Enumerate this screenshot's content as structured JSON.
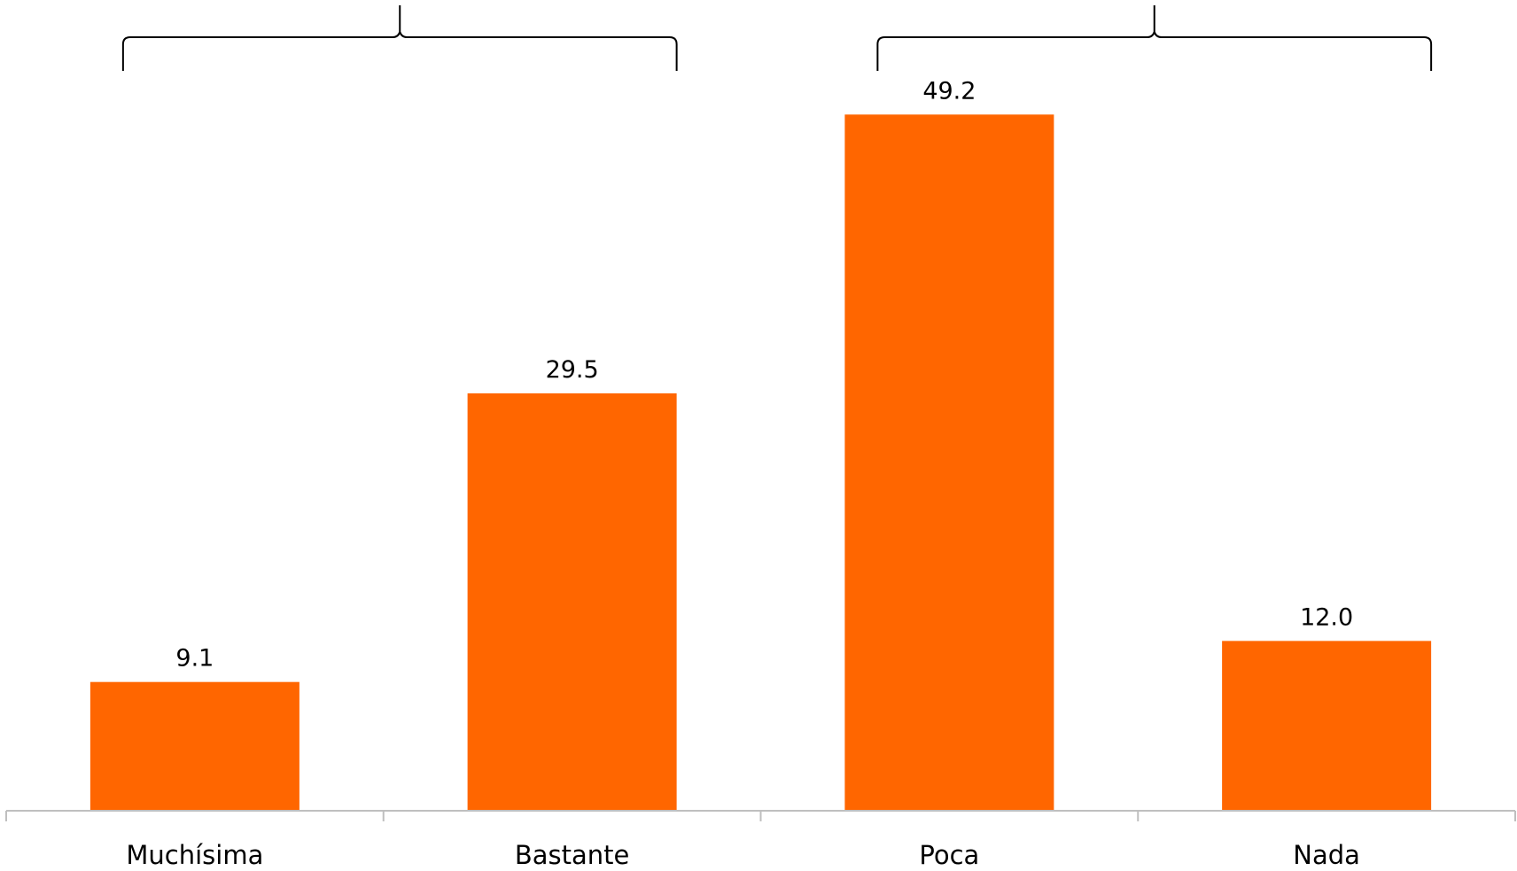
{
  "chart_data": {
    "type": "bar",
    "categories": [
      "Muchísima",
      "Bastante",
      "Poca",
      "Nada"
    ],
    "values": [
      9.1,
      29.5,
      49.2,
      12.0
    ],
    "value_labels": [
      "9.1",
      "29.5",
      "49.2",
      "12.0"
    ],
    "title": "",
    "xlabel": "",
    "ylabel": "",
    "ylim": [
      0,
      50
    ],
    "grid": false,
    "legend": "none",
    "bar_color": "#FF6600",
    "axis_color": "#BFBFBF",
    "brackets": [
      {
        "from": "Muchísima",
        "to": "Bastante",
        "label": ""
      },
      {
        "from": "Poca",
        "to": "Nada",
        "label": ""
      }
    ]
  }
}
